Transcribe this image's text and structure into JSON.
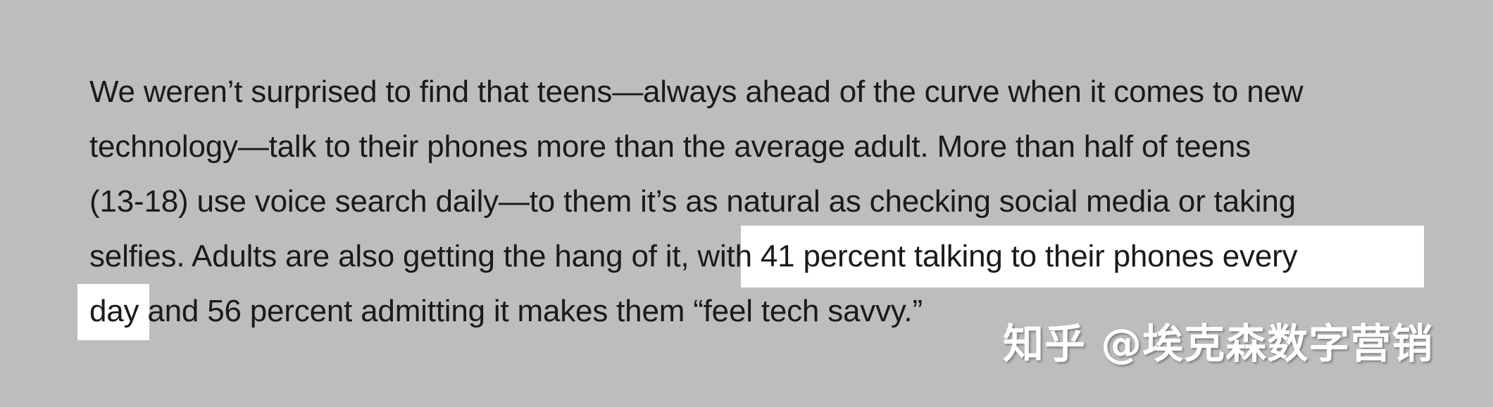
{
  "paragraph": {
    "lines": [
      "We weren’t surprised to find that teens—always ahead of the curve when it comes to new",
      "technology—talk to their phones more than the average adult. More than half of teens",
      "(13-18) use voice search daily—to them it’s as natural as checking social media or taking",
      "selfies. Adults are also getting the hang of it, with 41 percent talking to their phones every",
      "day and 56 percent admitting it makes them “feel tech savvy.”"
    ]
  },
  "watermark": {
    "text": "知乎 @埃克森数字营销"
  },
  "colors": {
    "background": "#bdbdbd",
    "text": "#1a1a1a",
    "highlight": "#ffffff"
  }
}
